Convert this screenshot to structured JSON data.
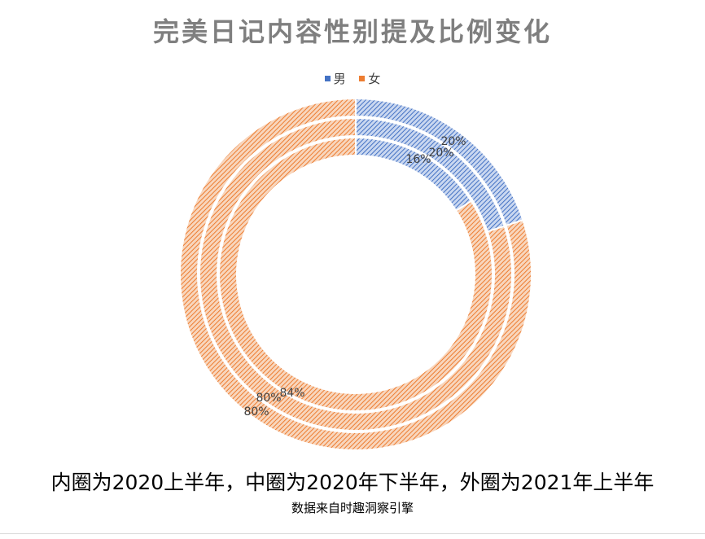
{
  "chart_data": {
    "type": "doughnut",
    "title": "完美日记内容性别提及比例变化",
    "legend": {
      "position": "top",
      "entries": [
        {
          "name": "男",
          "color": "#4472c4"
        },
        {
          "name": "女",
          "color": "#ed7d31"
        }
      ]
    },
    "categories": [
      "男",
      "女"
    ],
    "rings": [
      {
        "ring": "inner",
        "values": [
          16,
          84
        ],
        "labels": [
          "16%",
          "84%"
        ]
      },
      {
        "ring": "middle",
        "values": [
          20,
          80
        ],
        "labels": [
          "20%",
          "80%"
        ]
      },
      {
        "ring": "outer",
        "values": [
          20,
          80
        ],
        "labels": [
          "20%",
          "80%"
        ]
      }
    ],
    "colors": {
      "男": "#4472c4",
      "女": "#ed7d31"
    }
  },
  "caption": "内圈为2020上半年，中圈为2020年下半年，外圈为2021年上半年",
  "source": "数据来自时趣洞察引擎"
}
